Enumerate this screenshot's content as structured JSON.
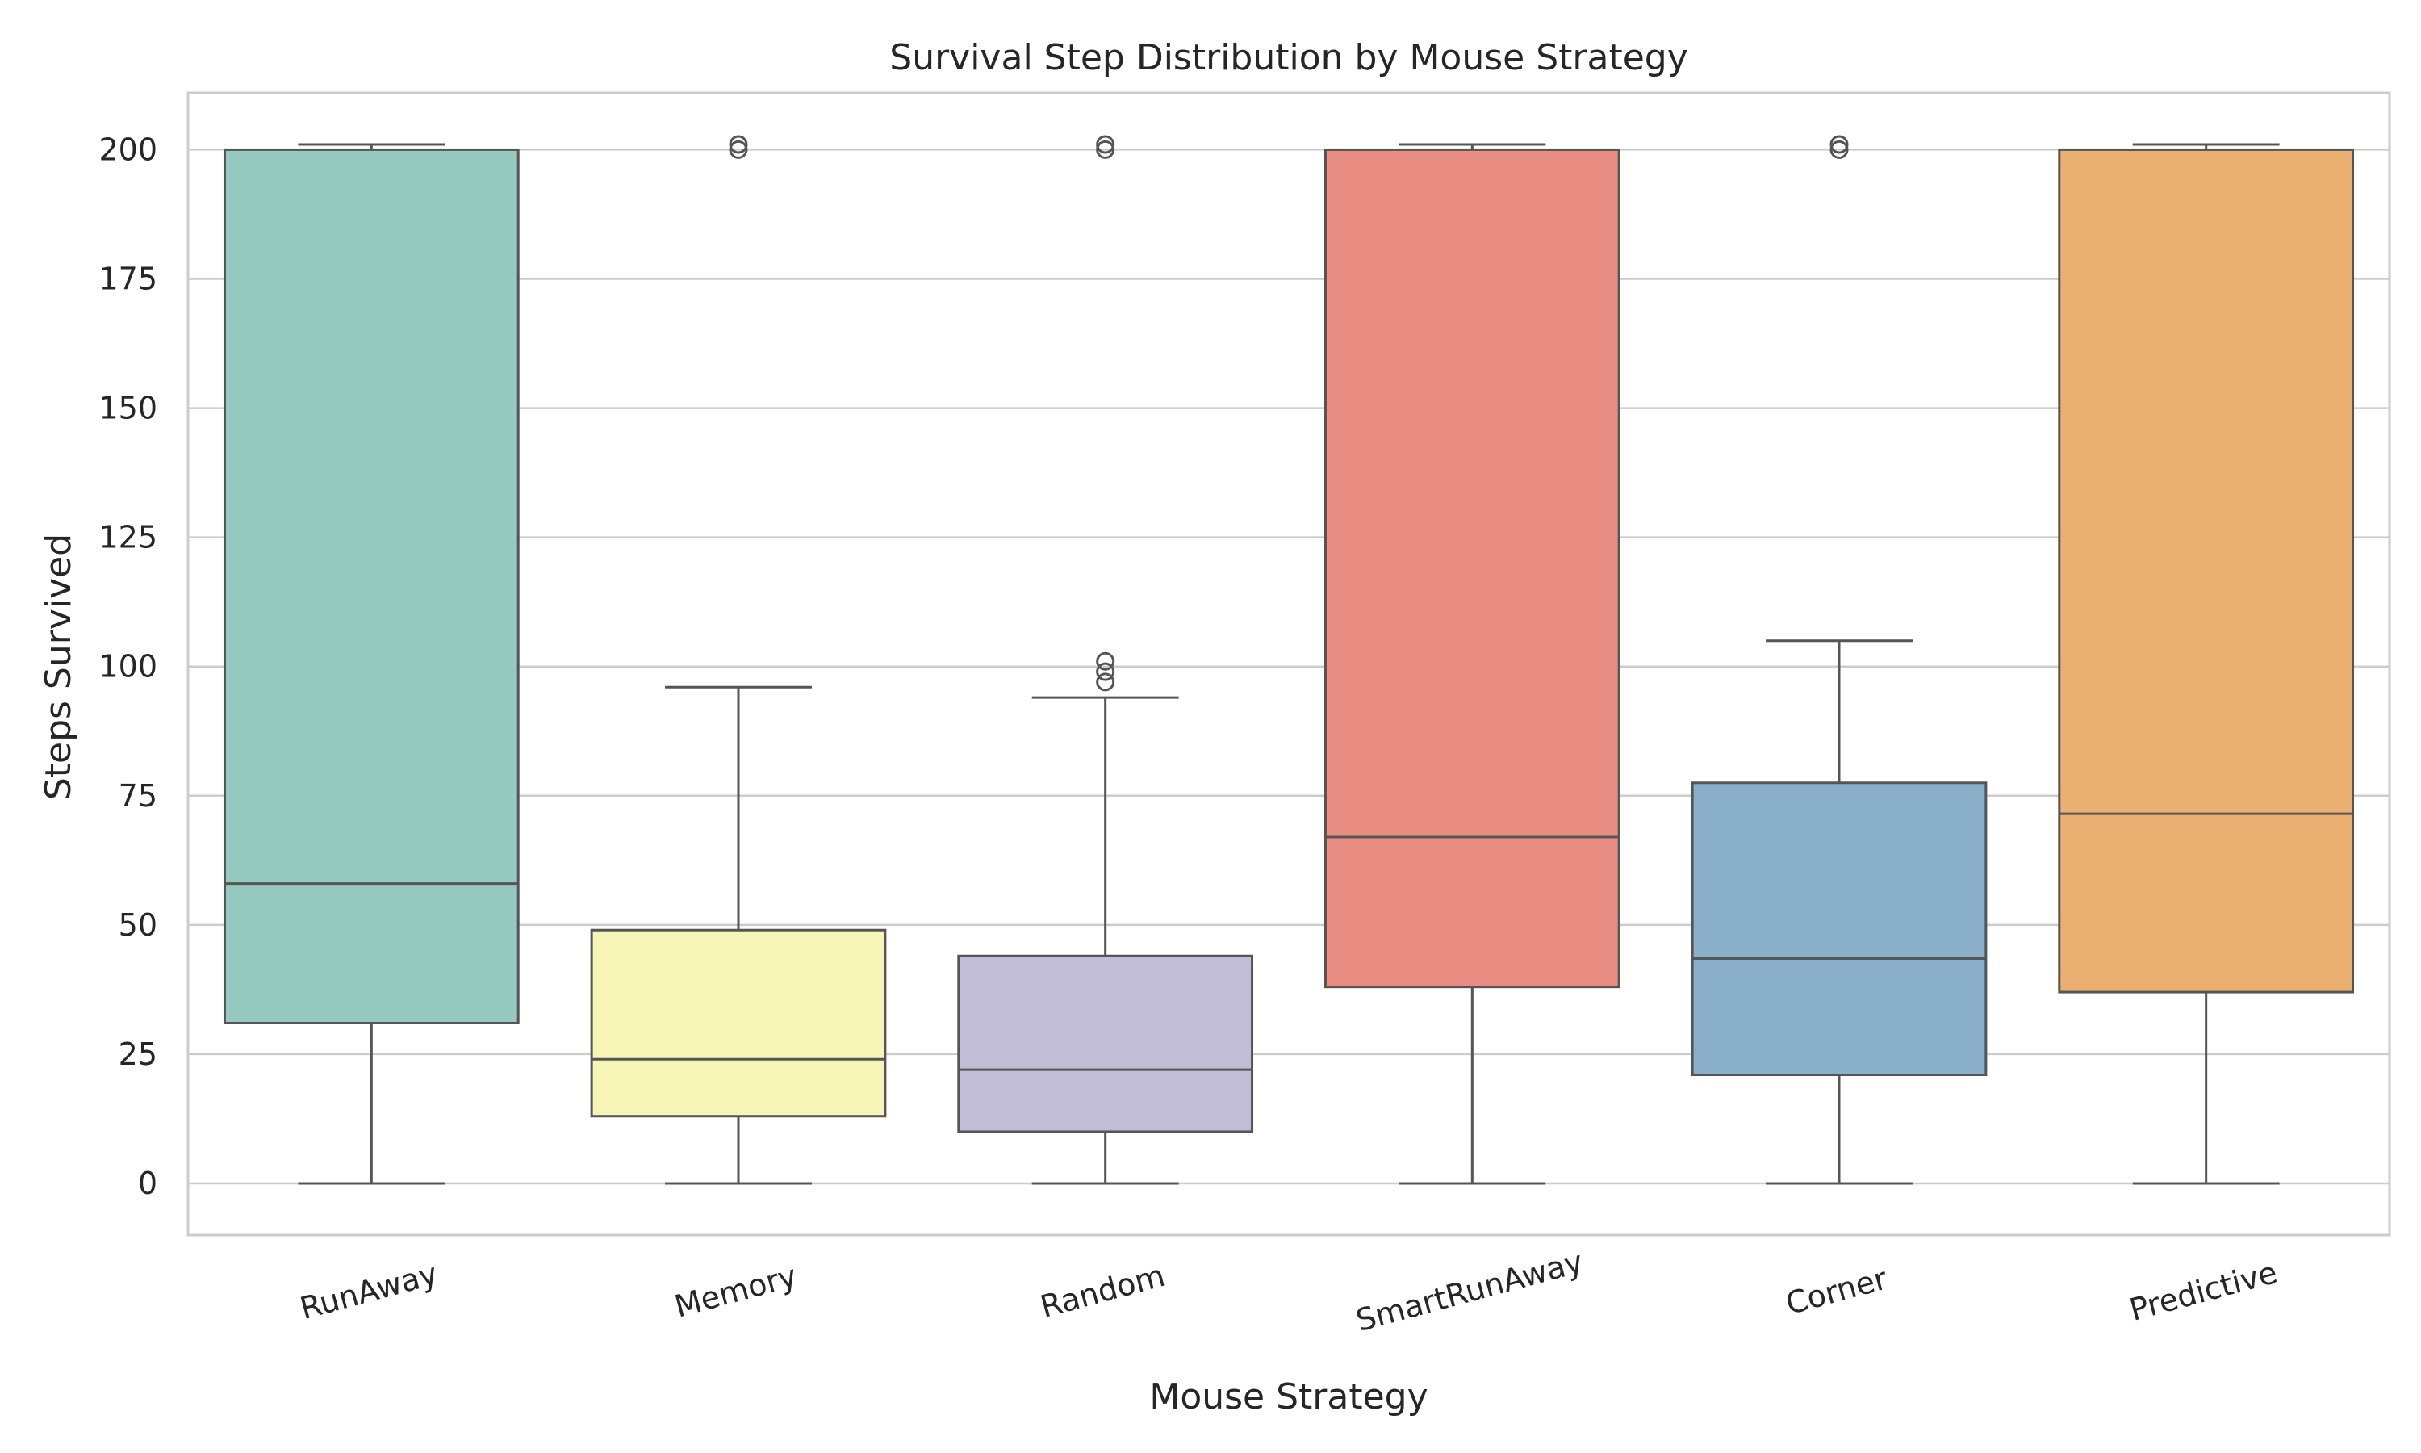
{
  "chart_data": {
    "type": "box",
    "title": "Survival Step Distribution by Mouse Strategy",
    "xlabel": "Mouse Strategy",
    "ylabel": "Steps Survived",
    "ylim": [
      -10,
      211
    ],
    "yticks": [
      0,
      25,
      50,
      75,
      100,
      125,
      150,
      175,
      200
    ],
    "grid": "horizontal",
    "categories": [
      "RunAway",
      "Memory",
      "Random",
      "SmartRunAway",
      "Corner",
      "Predictive"
    ],
    "colors": [
      "#96c9c0",
      "#f6f5b8",
      "#c1bdd6",
      "#e98d82",
      "#89afca",
      "#eab072"
    ],
    "edge_color": "#555555",
    "boxes": [
      {
        "category": "RunAway",
        "whisker_low": 0,
        "q1": 31,
        "median": 58,
        "q3": 200,
        "whisker_high": 201,
        "outliers": []
      },
      {
        "category": "Memory",
        "whisker_low": 0,
        "q1": 13,
        "median": 24,
        "q3": 49,
        "whisker_high": 96,
        "outliers": [
          200,
          201
        ]
      },
      {
        "category": "Random",
        "whisker_low": 0,
        "q1": 10,
        "median": 22,
        "q3": 44,
        "whisker_high": 94,
        "outliers": [
          97,
          99,
          101,
          200,
          201
        ]
      },
      {
        "category": "SmartRunAway",
        "whisker_low": 0,
        "q1": 38,
        "median": 67,
        "q3": 200,
        "whisker_high": 201,
        "outliers": []
      },
      {
        "category": "Corner",
        "whisker_low": 0,
        "q1": 21,
        "median": 43.5,
        "q3": 77.5,
        "whisker_high": 105,
        "outliers": [
          200,
          201
        ]
      },
      {
        "category": "Predictive",
        "whisker_low": 0,
        "q1": 37,
        "median": 71.5,
        "q3": 200,
        "whisker_high": 201,
        "outliers": []
      }
    ]
  }
}
